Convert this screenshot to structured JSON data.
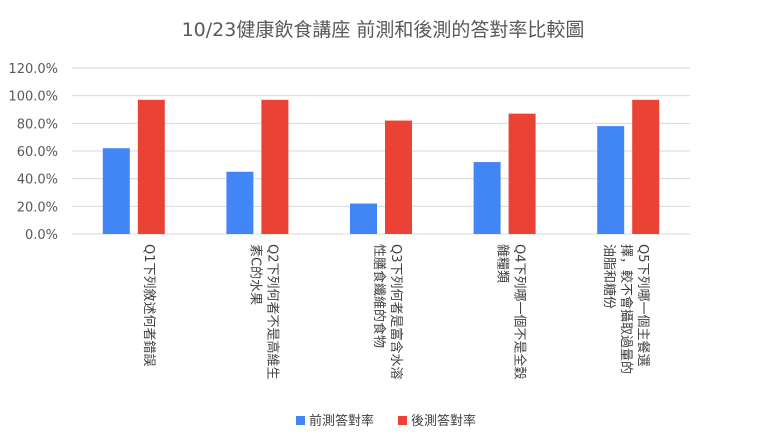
{
  "chart_data": {
    "type": "bar",
    "title": "10/23健康飲食講座 前測和後測的答對率比較圖",
    "xlabel": "",
    "ylabel": "",
    "ylim": [
      0,
      1.2
    ],
    "yticks": [
      "0.0%",
      "20.0%",
      "40.0%",
      "60.0%",
      "80.0%",
      "100.0%",
      "120.0%"
    ],
    "grid": true,
    "legend_position": "bottom",
    "categories": [
      [
        "Q1下列敘述何者錯誤"
      ],
      [
        "Q2下列何者不是高維生",
        "素C的水果"
      ],
      [
        "Q3下列何者是富含水溶",
        "性膳食纖維的食物"
      ],
      [
        "Q4下列哪一個不是全穀",
        "雜糧類"
      ],
      [
        "Q5下列哪一個主餐選",
        "擇，較不會攝取過量的",
        "油脂和糖份"
      ]
    ],
    "series": [
      {
        "name": "前測答對率",
        "color": "#4285f4",
        "values": [
          0.62,
          0.45,
          0.22,
          0.52,
          0.78
        ]
      },
      {
        "name": "後測答對率",
        "color": "#ea4335",
        "values": [
          0.97,
          0.97,
          0.82,
          0.87,
          0.97
        ]
      }
    ]
  }
}
